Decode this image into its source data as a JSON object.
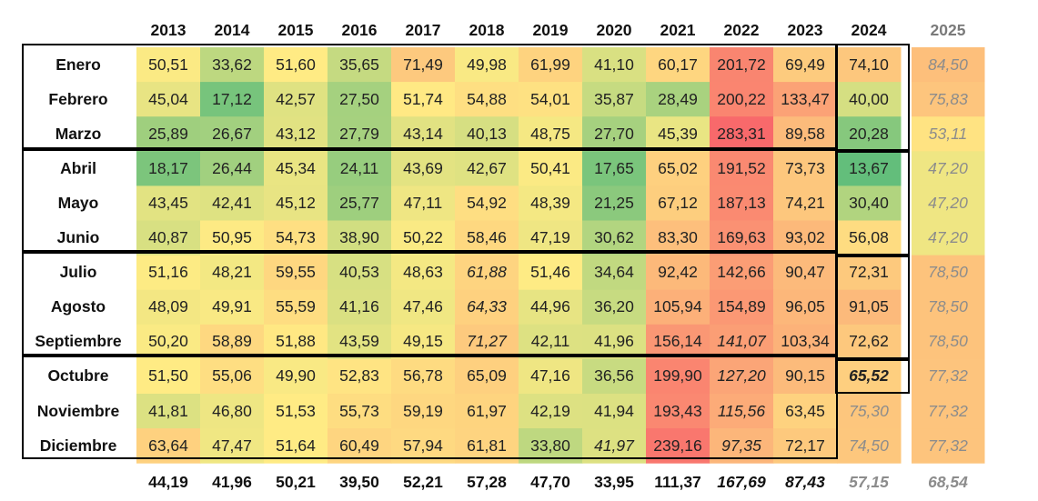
{
  "chart_data": {
    "type": "heatmap",
    "x": [
      "2013",
      "2014",
      "2015",
      "2016",
      "2017",
      "2018",
      "2019",
      "2020",
      "2021",
      "2022",
      "2023",
      "2024",
      "2025"
    ],
    "y": [
      "Enero",
      "Febrero",
      "Marzo",
      "Abril",
      "Mayo",
      "Junio",
      "Julio",
      "Agosto",
      "Septiembre",
      "Octubre",
      "Noviembre",
      "Diciembre"
    ],
    "values": [
      [
        "50,51",
        "33,62",
        "51,60",
        "35,65",
        "71,49",
        "49,98",
        "61,99",
        "41,10",
        "60,17",
        "201,72",
        "69,49",
        "74,10",
        "84,50"
      ],
      [
        "45,04",
        "17,12",
        "42,57",
        "27,50",
        "51,74",
        "54,88",
        "54,01",
        "35,87",
        "28,49",
        "200,22",
        "133,47",
        "40,00",
        "75,83"
      ],
      [
        "25,89",
        "26,67",
        "43,12",
        "27,79",
        "43,14",
        "40,13",
        "48,75",
        "27,70",
        "45,39",
        "283,31",
        "89,58",
        "20,28",
        "53,11"
      ],
      [
        "18,17",
        "26,44",
        "45,34",
        "24,11",
        "43,69",
        "42,67",
        "50,41",
        "17,65",
        "65,02",
        "191,52",
        "73,73",
        "13,67",
        "47,20"
      ],
      [
        "43,45",
        "42,41",
        "45,12",
        "25,77",
        "47,11",
        "54,92",
        "48,39",
        "21,25",
        "67,12",
        "187,13",
        "74,21",
        "30,40",
        "47,20"
      ],
      [
        "40,87",
        "50,95",
        "54,73",
        "38,90",
        "50,22",
        "58,46",
        "47,19",
        "30,62",
        "83,30",
        "169,63",
        "93,02",
        "56,08",
        "47,20"
      ],
      [
        "51,16",
        "48,21",
        "59,55",
        "40,53",
        "48,63",
        "61,88",
        "51,46",
        "34,64",
        "92,42",
        "142,66",
        "90,47",
        "72,31",
        "78,50"
      ],
      [
        "48,09",
        "49,91",
        "55,59",
        "41,16",
        "47,46",
        "64,33",
        "44,96",
        "36,20",
        "105,94",
        "154,89",
        "96,05",
        "91,05",
        "78,50"
      ],
      [
        "50,20",
        "58,89",
        "51,88",
        "43,59",
        "49,15",
        "71,27",
        "42,11",
        "41,96",
        "156,14",
        "141,07",
        "103,34",
        "72,62",
        "78,50"
      ],
      [
        "51,50",
        "55,06",
        "49,90",
        "52,83",
        "56,78",
        "65,09",
        "47,16",
        "36,56",
        "199,90",
        "127,20",
        "90,15",
        "65,52",
        "77,32"
      ],
      [
        "41,81",
        "46,80",
        "51,53",
        "55,73",
        "59,19",
        "61,97",
        "42,19",
        "41,94",
        "193,43",
        "115,56",
        "63,45",
        "75,30",
        "77,32"
      ],
      [
        "63,64",
        "47,47",
        "51,64",
        "60,49",
        "57,94",
        "61,81",
        "33,80",
        "41,97",
        "239,16",
        "97,35",
        "72,17",
        "74,50",
        "77,32"
      ]
    ],
    "italic_cells": [
      [
        6,
        5
      ],
      [
        7,
        5
      ],
      [
        8,
        5
      ],
      [
        8,
        9
      ],
      [
        9,
        9
      ],
      [
        10,
        9
      ],
      [
        11,
        9
      ],
      [
        11,
        7
      ],
      [
        9,
        11
      ]
    ],
    "estimated_cells": [
      [
        0,
        12
      ],
      [
        1,
        12
      ],
      [
        2,
        12
      ],
      [
        3,
        12
      ],
      [
        4,
        12
      ],
      [
        5,
        12
      ],
      [
        6,
        12
      ],
      [
        7,
        12
      ],
      [
        8,
        12
      ],
      [
        9,
        12
      ],
      [
        10,
        12
      ],
      [
        11,
        12
      ],
      [
        10,
        11
      ],
      [
        11,
        11
      ]
    ],
    "annual_averages": [
      "44,19",
      "41,96",
      "50,21",
      "39,50",
      "52,21",
      "57,28",
      "47,70",
      "33,95",
      "111,37",
      "167,69",
      "87,43",
      "57,15",
      "68,54"
    ],
    "italic_averages": [
      9,
      10
    ],
    "estimated_averages": [
      11,
      12
    ],
    "color_scale": {
      "low": "#63be7b",
      "mid": "#ffeb84",
      "high": "#f8696b"
    },
    "grid": false,
    "legend": "none"
  }
}
